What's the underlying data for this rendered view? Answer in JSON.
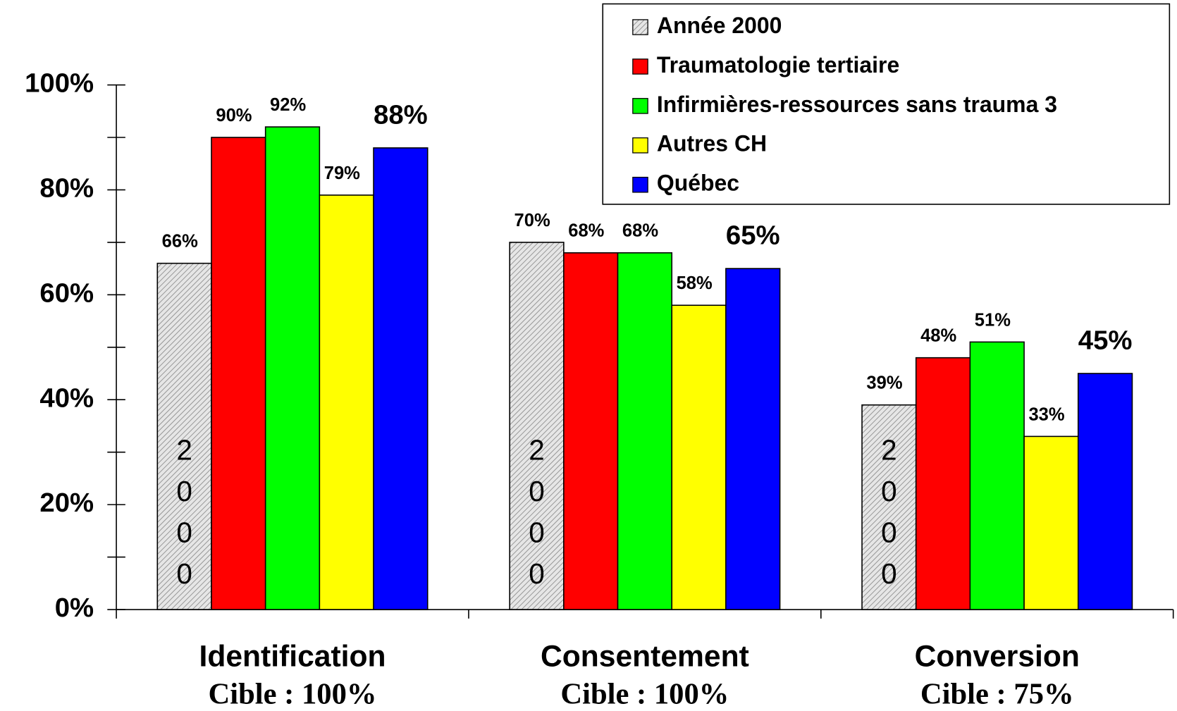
{
  "chart_data": {
    "type": "bar",
    "categories": [
      "Identification",
      "Consentement",
      "Conversion"
    ],
    "targets": [
      "Cible : 100%",
      "Cible : 100%",
      "Cible : 75%"
    ],
    "bar_annotations": [
      "2000",
      "2000",
      "2000"
    ],
    "series": [
      {
        "name": "Année 2000",
        "color": "#c8c8c8",
        "hatched": true,
        "values": [
          66,
          70,
          39
        ],
        "value_labels": [
          "66%",
          "70%",
          "39%"
        ]
      },
      {
        "name": "Traumatologie tertiaire",
        "color": "#ff0000",
        "values": [
          90,
          68,
          48
        ],
        "value_labels": [
          "90%",
          "68%",
          "48%"
        ]
      },
      {
        "name": "Infirmières-ressources sans trauma 3",
        "color": "#00ff00",
        "values": [
          92,
          68,
          51
        ],
        "value_labels": [
          "92%",
          "68%",
          "51%"
        ]
      },
      {
        "name": "Autres CH",
        "color": "#ffff00",
        "values": [
          79,
          58,
          33
        ],
        "value_labels": [
          "79%",
          "58%",
          "33%"
        ]
      },
      {
        "name": "Québec",
        "color": "#0000ff",
        "emphasis": true,
        "values": [
          88,
          65,
          45
        ],
        "value_labels": [
          "88%",
          "65%",
          "45%"
        ]
      }
    ],
    "ylim": [
      0,
      100
    ],
    "yticks": [
      {
        "value": 0,
        "label": "0%"
      },
      {
        "value": 20,
        "label": "20%"
      },
      {
        "value": 40,
        "label": "40%"
      },
      {
        "value": 60,
        "label": "60%"
      },
      {
        "value": 80,
        "label": "80%"
      },
      {
        "value": 100,
        "label": "100%"
      }
    ],
    "minor_yticks": [
      10,
      30,
      50,
      70,
      90
    ],
    "legend": "top-right"
  }
}
